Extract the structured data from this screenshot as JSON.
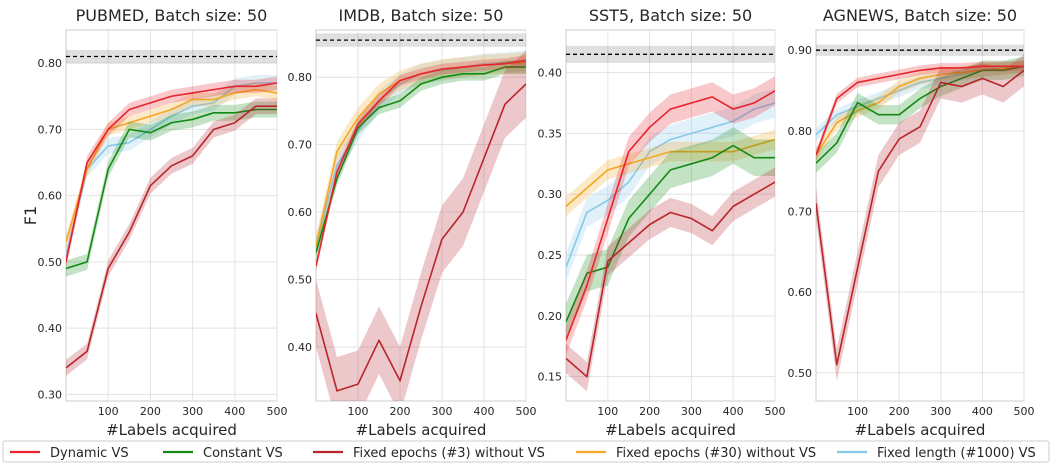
{
  "colors": {
    "dynamic": "#e8232b",
    "constant": "#128a14",
    "fixed3": "#b8252b",
    "fixed30": "#f5a623",
    "fixedlen": "#87c9ea",
    "reference": "#000000"
  },
  "legend": {
    "entries": [
      {
        "key": "dynamic",
        "label": "Dynamic VS"
      },
      {
        "key": "constant",
        "label": "Constant VS"
      },
      {
        "key": "fixed3",
        "label": "Fixed epochs (#3) without VS"
      },
      {
        "key": "fixed30",
        "label": "Fixed epochs (#30) without VS"
      },
      {
        "key": "fixedlen",
        "label": "Fixed length (#1000) VS"
      }
    ]
  },
  "chart_data": [
    {
      "type": "line",
      "title": "PUBMED, Batch size: 50",
      "xlabel": "#Labels acquired",
      "ylabel": "F1",
      "xlim": [
        0,
        500
      ],
      "ylim": [
        0.29,
        0.85
      ],
      "xticks": [
        100,
        200,
        300,
        400,
        500
      ],
      "yticks": [
        0.3,
        0.4,
        0.5,
        0.6,
        0.7,
        0.8
      ],
      "ytick_labels": [
        "0.30",
        "0.40",
        "0.50",
        "0.60",
        "0.70",
        "0.80"
      ],
      "x": [
        0,
        50,
        100,
        150,
        200,
        250,
        300,
        350,
        400,
        450,
        500
      ],
      "reference": {
        "value": 0.81,
        "band": [
          0.8,
          0.82
        ]
      },
      "series": [
        {
          "key": "fixedlen",
          "values": [
            0.51,
            0.64,
            0.675,
            0.68,
            0.7,
            0.72,
            0.735,
            0.74,
            0.765,
            0.77,
            0.77
          ],
          "band": 0.012
        },
        {
          "key": "fixed30",
          "values": [
            0.53,
            0.64,
            0.7,
            0.71,
            0.72,
            0.73,
            0.745,
            0.745,
            0.755,
            0.76,
            0.755
          ],
          "band": 0.01
        },
        {
          "key": "constant",
          "values": [
            0.49,
            0.5,
            0.64,
            0.7,
            0.695,
            0.71,
            0.715,
            0.725,
            0.725,
            0.73,
            0.73
          ],
          "band": 0.012
        },
        {
          "key": "fixed3",
          "values": [
            0.34,
            0.365,
            0.49,
            0.545,
            0.615,
            0.645,
            0.66,
            0.7,
            0.71,
            0.735,
            0.735
          ],
          "band": 0.012
        },
        {
          "key": "dynamic",
          "values": [
            0.5,
            0.65,
            0.7,
            0.73,
            0.74,
            0.75,
            0.755,
            0.76,
            0.765,
            0.765,
            0.77
          ],
          "band": 0.01
        }
      ]
    },
    {
      "type": "line",
      "title": "IMDB, Batch size: 50",
      "xlabel": "#Labels acquired",
      "ylabel": "",
      "xlim": [
        0,
        500
      ],
      "ylim": [
        0.32,
        0.87
      ],
      "xticks": [
        100,
        200,
        300,
        400,
        500
      ],
      "yticks": [
        0.4,
        0.5,
        0.6,
        0.7,
        0.8
      ],
      "ytick_labels": [
        "0.40",
        "0.50",
        "0.60",
        "0.70",
        "0.80"
      ],
      "x": [
        0,
        50,
        100,
        150,
        200,
        250,
        300,
        350,
        400,
        450,
        500
      ],
      "reference": {
        "value": 0.855,
        "band": [
          0.845,
          0.865
        ]
      },
      "series": [
        {
          "key": "fixedlen",
          "values": [
            0.55,
            0.67,
            0.72,
            0.765,
            0.79,
            0.805,
            0.81,
            0.815,
            0.82,
            0.822,
            0.825
          ],
          "band": 0.015
        },
        {
          "key": "fixed30",
          "values": [
            0.55,
            0.69,
            0.74,
            0.775,
            0.795,
            0.805,
            0.812,
            0.815,
            0.818,
            0.82,
            0.822
          ],
          "band": 0.015
        },
        {
          "key": "constant",
          "values": [
            0.54,
            0.65,
            0.725,
            0.755,
            0.765,
            0.79,
            0.8,
            0.805,
            0.805,
            0.815,
            0.815
          ],
          "band": 0.01
        },
        {
          "key": "fixed3",
          "values": [
            0.45,
            0.335,
            0.345,
            0.41,
            0.35,
            0.46,
            0.56,
            0.6,
            0.68,
            0.76,
            0.79
          ],
          "band": 0.05
        },
        {
          "key": "dynamic",
          "values": [
            0.52,
            0.66,
            0.73,
            0.765,
            0.795,
            0.805,
            0.812,
            0.815,
            0.818,
            0.82,
            0.825
          ],
          "band": 0.008
        }
      ]
    },
    {
      "type": "line",
      "title": "SST5, Batch size: 50",
      "xlabel": "#Labels acquired",
      "ylabel": "",
      "xlim": [
        0,
        500
      ],
      "ylim": [
        0.13,
        0.435
      ],
      "xticks": [
        100,
        200,
        300,
        400,
        500
      ],
      "yticks": [
        0.15,
        0.2,
        0.25,
        0.3,
        0.35,
        0.4
      ],
      "ytick_labels": [
        "0.15",
        "0.20",
        "0.25",
        "0.30",
        "0.35",
        "0.40"
      ],
      "x": [
        0,
        50,
        100,
        150,
        200,
        250,
        300,
        350,
        400,
        450,
        500
      ],
      "reference": {
        "value": 0.415,
        "band": [
          0.408,
          0.422
        ]
      },
      "series": [
        {
          "key": "fixedlen",
          "values": [
            0.24,
            0.285,
            0.295,
            0.31,
            0.335,
            0.345,
            0.35,
            0.355,
            0.36,
            0.37,
            0.375
          ],
          "band": 0.012
        },
        {
          "key": "fixed30",
          "values": [
            0.29,
            0.305,
            0.32,
            0.325,
            0.33,
            0.335,
            0.335,
            0.335,
            0.335,
            0.34,
            0.345
          ],
          "band": 0.008
        },
        {
          "key": "constant",
          "values": [
            0.195,
            0.235,
            0.24,
            0.28,
            0.3,
            0.32,
            0.325,
            0.33,
            0.34,
            0.33,
            0.33
          ],
          "band": 0.015
        },
        {
          "key": "fixed3",
          "values": [
            0.165,
            0.15,
            0.245,
            0.26,
            0.275,
            0.285,
            0.28,
            0.27,
            0.29,
            0.3,
            0.31
          ],
          "band": 0.012
        },
        {
          "key": "dynamic",
          "values": [
            0.18,
            0.225,
            0.28,
            0.335,
            0.355,
            0.37,
            0.375,
            0.38,
            0.37,
            0.375,
            0.385
          ],
          "band": 0.012
        }
      ]
    },
    {
      "type": "line",
      "title": "AGNEWS, Batch size: 50",
      "xlabel": "#Labels acquired",
      "ylabel": "",
      "xlim": [
        0,
        500
      ],
      "ylim": [
        0.465,
        0.925
      ],
      "xticks": [
        100,
        200,
        300,
        400,
        500
      ],
      "yticks": [
        0.5,
        0.6,
        0.7,
        0.8,
        0.9
      ],
      "ytick_labels": [
        "0.50",
        "0.60",
        "0.70",
        "0.80",
        "0.90"
      ],
      "x": [
        0,
        50,
        100,
        150,
        200,
        250,
        300,
        350,
        400,
        450,
        500
      ],
      "reference": {
        "value": 0.9,
        "band": [
          0.893,
          0.907
        ]
      },
      "series": [
        {
          "key": "fixedlen",
          "values": [
            0.795,
            0.82,
            0.83,
            0.84,
            0.85,
            0.86,
            0.865,
            0.87,
            0.875,
            0.878,
            0.88
          ],
          "band": 0.008
        },
        {
          "key": "fixed30",
          "values": [
            0.77,
            0.81,
            0.825,
            0.835,
            0.855,
            0.865,
            0.87,
            0.872,
            0.875,
            0.877,
            0.88
          ],
          "band": 0.008
        },
        {
          "key": "constant",
          "values": [
            0.76,
            0.785,
            0.835,
            0.82,
            0.82,
            0.84,
            0.855,
            0.865,
            0.875,
            0.875,
            0.88
          ],
          "band": 0.012
        },
        {
          "key": "fixed3",
          "values": [
            0.71,
            0.51,
            0.63,
            0.75,
            0.79,
            0.805,
            0.86,
            0.855,
            0.865,
            0.855,
            0.875
          ],
          "band": 0.02
        },
        {
          "key": "dynamic",
          "values": [
            0.77,
            0.84,
            0.86,
            0.865,
            0.87,
            0.875,
            0.878,
            0.878,
            0.88,
            0.88,
            0.88
          ],
          "band": 0.006
        }
      ]
    }
  ]
}
